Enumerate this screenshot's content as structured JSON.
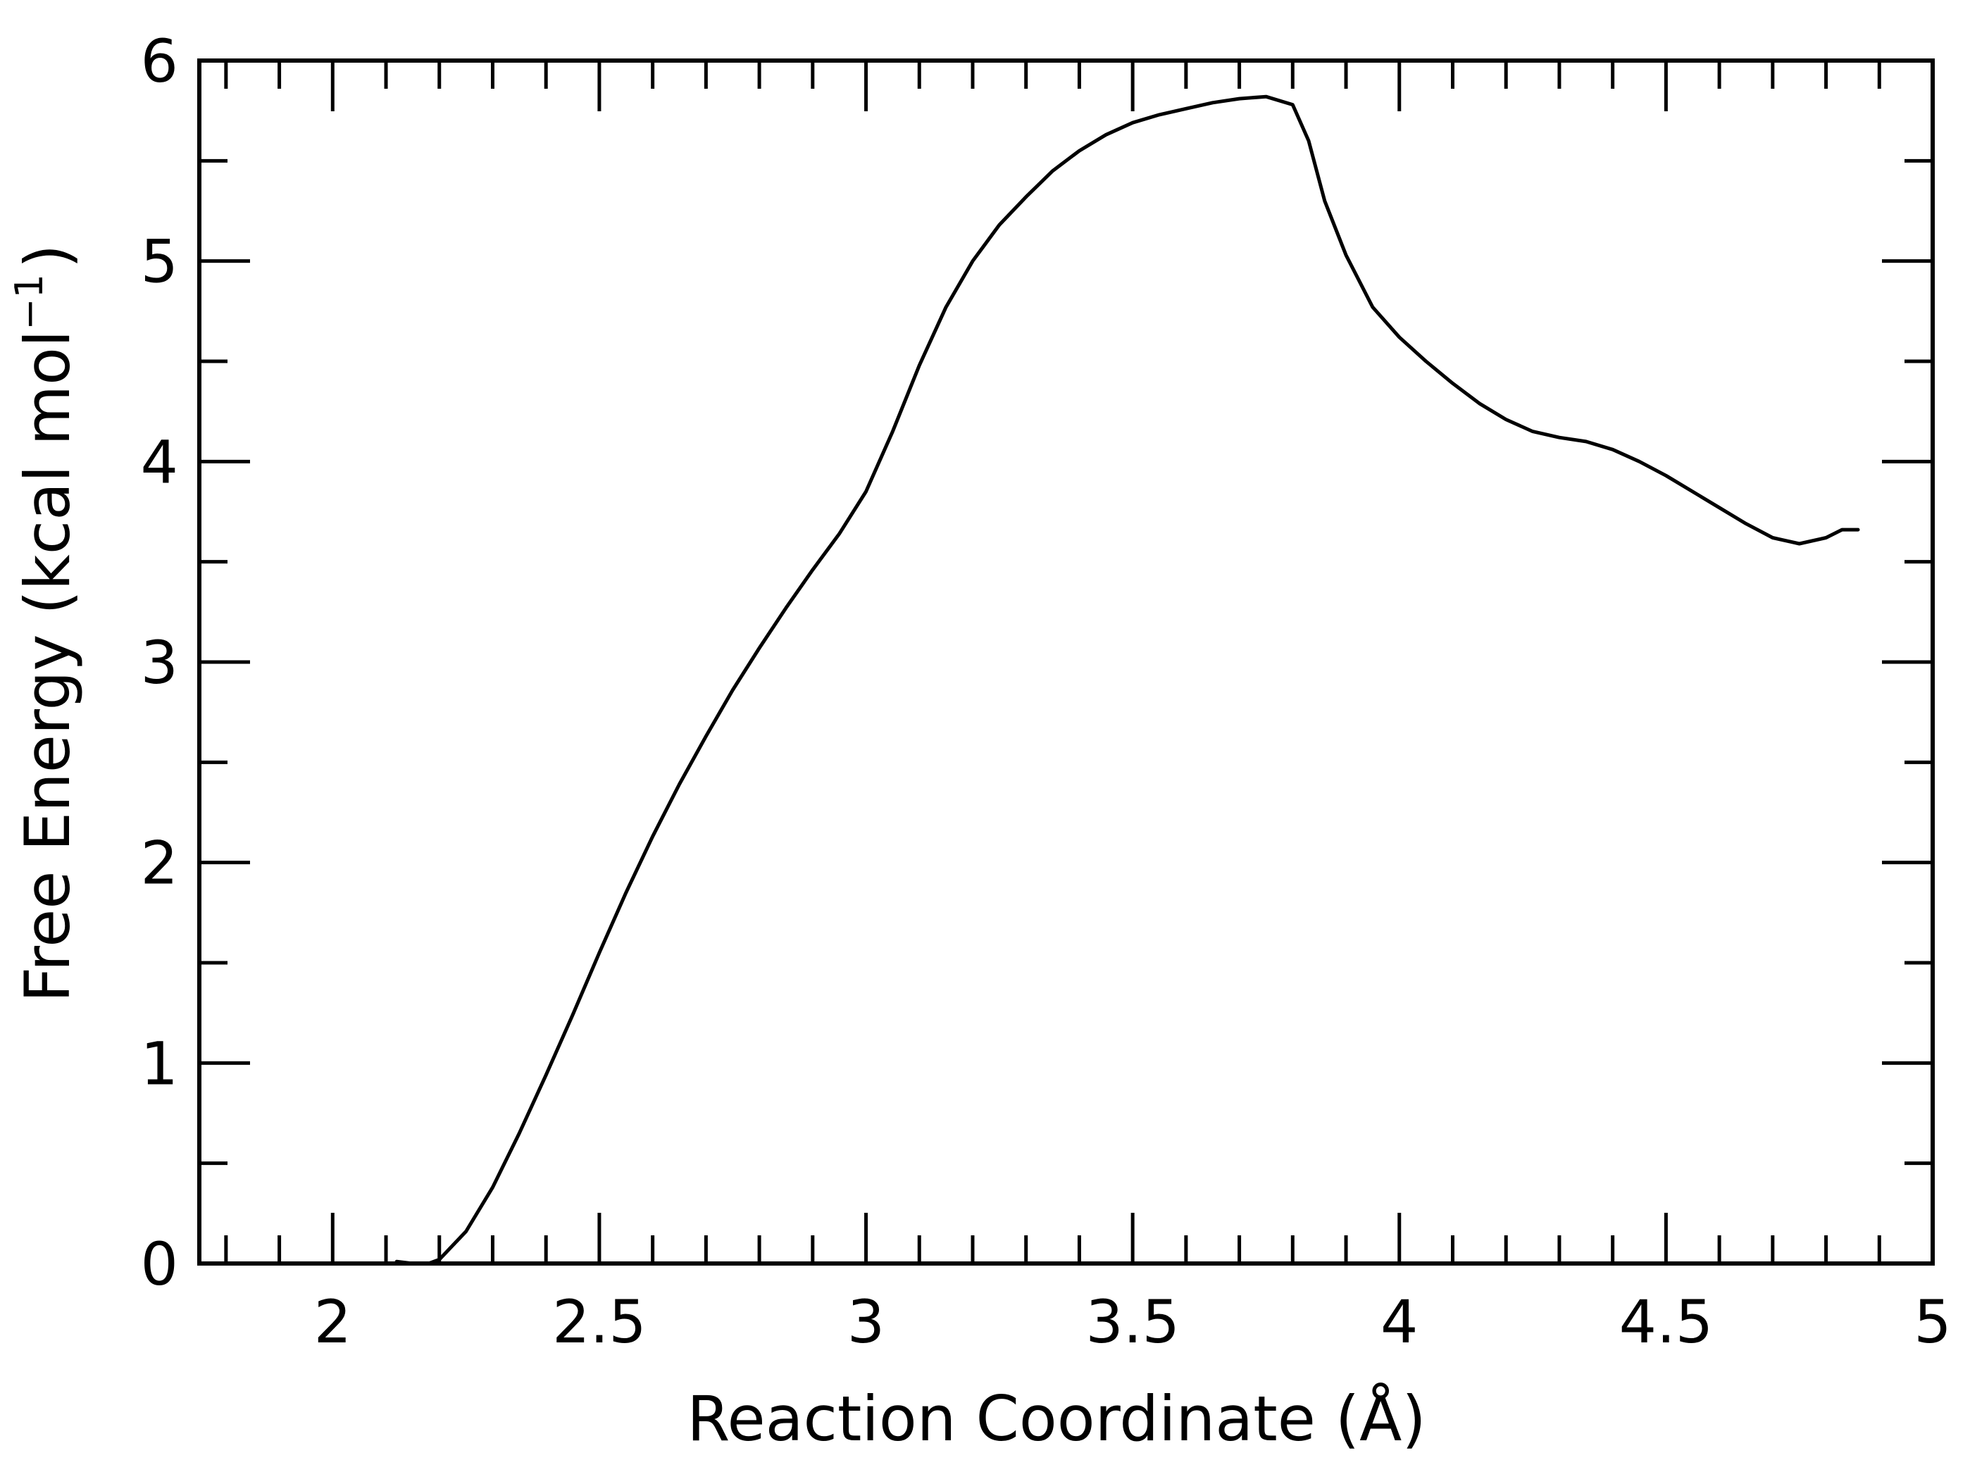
{
  "chart_data": {
    "type": "line",
    "title": "",
    "xlabel": "Reaction Coordinate (Å)",
    "ylabel_main": "Free Energy (kcal mol",
    "ylabel_sup": "−1",
    "ylabel_close": ")",
    "xlim": [
      1.75,
      5.0
    ],
    "ylim": [
      0,
      6
    ],
    "xticks": [
      2,
      2.5,
      3,
      3.5,
      4,
      4.5,
      5
    ],
    "xtick_labels": [
      "2",
      "2.5",
      "3",
      "3.5",
      "4",
      "4.5",
      "5"
    ],
    "yticks": [
      0,
      1,
      2,
      3,
      4,
      5,
      6
    ],
    "ytick_labels": [
      "0",
      "1",
      "2",
      "3",
      "4",
      "5",
      "6"
    ],
    "x_minor_step": 0.1,
    "y_minor_step": 0.5,
    "grid": false,
    "line_color": "#000000",
    "series": [
      {
        "x": [
          2.12,
          2.15,
          2.18,
          2.2,
          2.25,
          2.3,
          2.35,
          2.4,
          2.45,
          2.5,
          2.55,
          2.6,
          2.65,
          2.7,
          2.75,
          2.8,
          2.85,
          2.9,
          2.95,
          3.0,
          3.05,
          3.1,
          3.15,
          3.2,
          3.25,
          3.3,
          3.35,
          3.4,
          3.45,
          3.5,
          3.55,
          3.6,
          3.65,
          3.7,
          3.75,
          3.8,
          3.83,
          3.86,
          3.9,
          3.95,
          4.0,
          4.05,
          4.1,
          4.15,
          4.2,
          4.25,
          4.3,
          4.35,
          4.4,
          4.45,
          4.5,
          4.55,
          4.6,
          4.65,
          4.7,
          4.75,
          4.8,
          4.83,
          4.86
        ],
        "y": [
          0.01,
          0.0,
          0.0,
          0.02,
          0.16,
          0.38,
          0.65,
          0.94,
          1.24,
          1.55,
          1.85,
          2.13,
          2.39,
          2.63,
          2.86,
          3.07,
          3.27,
          3.46,
          3.64,
          3.85,
          4.15,
          4.48,
          4.77,
          5.0,
          5.18,
          5.32,
          5.45,
          5.55,
          5.63,
          5.69,
          5.73,
          5.76,
          5.79,
          5.81,
          5.82,
          5.78,
          5.6,
          5.3,
          5.03,
          4.77,
          4.62,
          4.5,
          4.39,
          4.29,
          4.21,
          4.15,
          4.12,
          4.1,
          4.06,
          4.0,
          3.93,
          3.85,
          3.77,
          3.69,
          3.62,
          3.59,
          3.62,
          3.66,
          3.66
        ]
      }
    ]
  }
}
